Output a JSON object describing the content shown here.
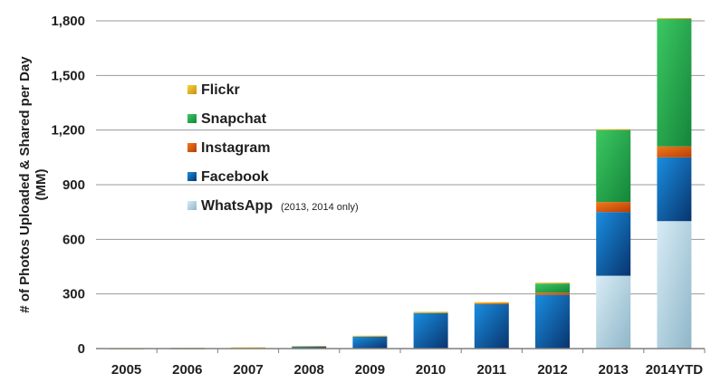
{
  "chart_data": {
    "type": "bar",
    "stacked": true,
    "ylabel_lines": [
      "# of Photos Uploaded & Shared per Day",
      "(MM)"
    ],
    "ylim": [
      0,
      1800
    ],
    "yticks": [
      "0",
      "300",
      "600",
      "900",
      "1,200",
      "1,500",
      "1,800"
    ],
    "ytick_values": [
      0,
      300,
      600,
      900,
      1200,
      1500,
      1800
    ],
    "grid": "horizontal",
    "legend_position": "left-center",
    "categories": [
      "2005",
      "2006",
      "2007",
      "2008",
      "2009",
      "2010",
      "2011",
      "2012",
      "2013",
      "2014YTD"
    ],
    "series": [
      {
        "name": "WhatsApp",
        "note": "(2013, 2014 only)",
        "color": "#9fc7da",
        "values": [
          0,
          0,
          0,
          0,
          0,
          0,
          0,
          0,
          400,
          700
        ]
      },
      {
        "name": "Facebook",
        "color": "#0b5fa5",
        "values": [
          0,
          2,
          3,
          10,
          65,
          195,
          245,
          295,
          350,
          350
        ]
      },
      {
        "name": "Instagram",
        "color": "#e2620e",
        "values": [
          0,
          0,
          0,
          0,
          0,
          0,
          3,
          12,
          55,
          60
        ]
      },
      {
        "name": "Snapchat",
        "color": "#1fa84a",
        "values": [
          0,
          0,
          0,
          0,
          0,
          0,
          0,
          50,
          395,
          700
        ]
      },
      {
        "name": "Flickr",
        "color": "#e8b81a",
        "values": [
          1,
          3,
          4,
          5,
          6,
          7,
          7,
          5,
          5,
          5
        ]
      }
    ]
  }
}
